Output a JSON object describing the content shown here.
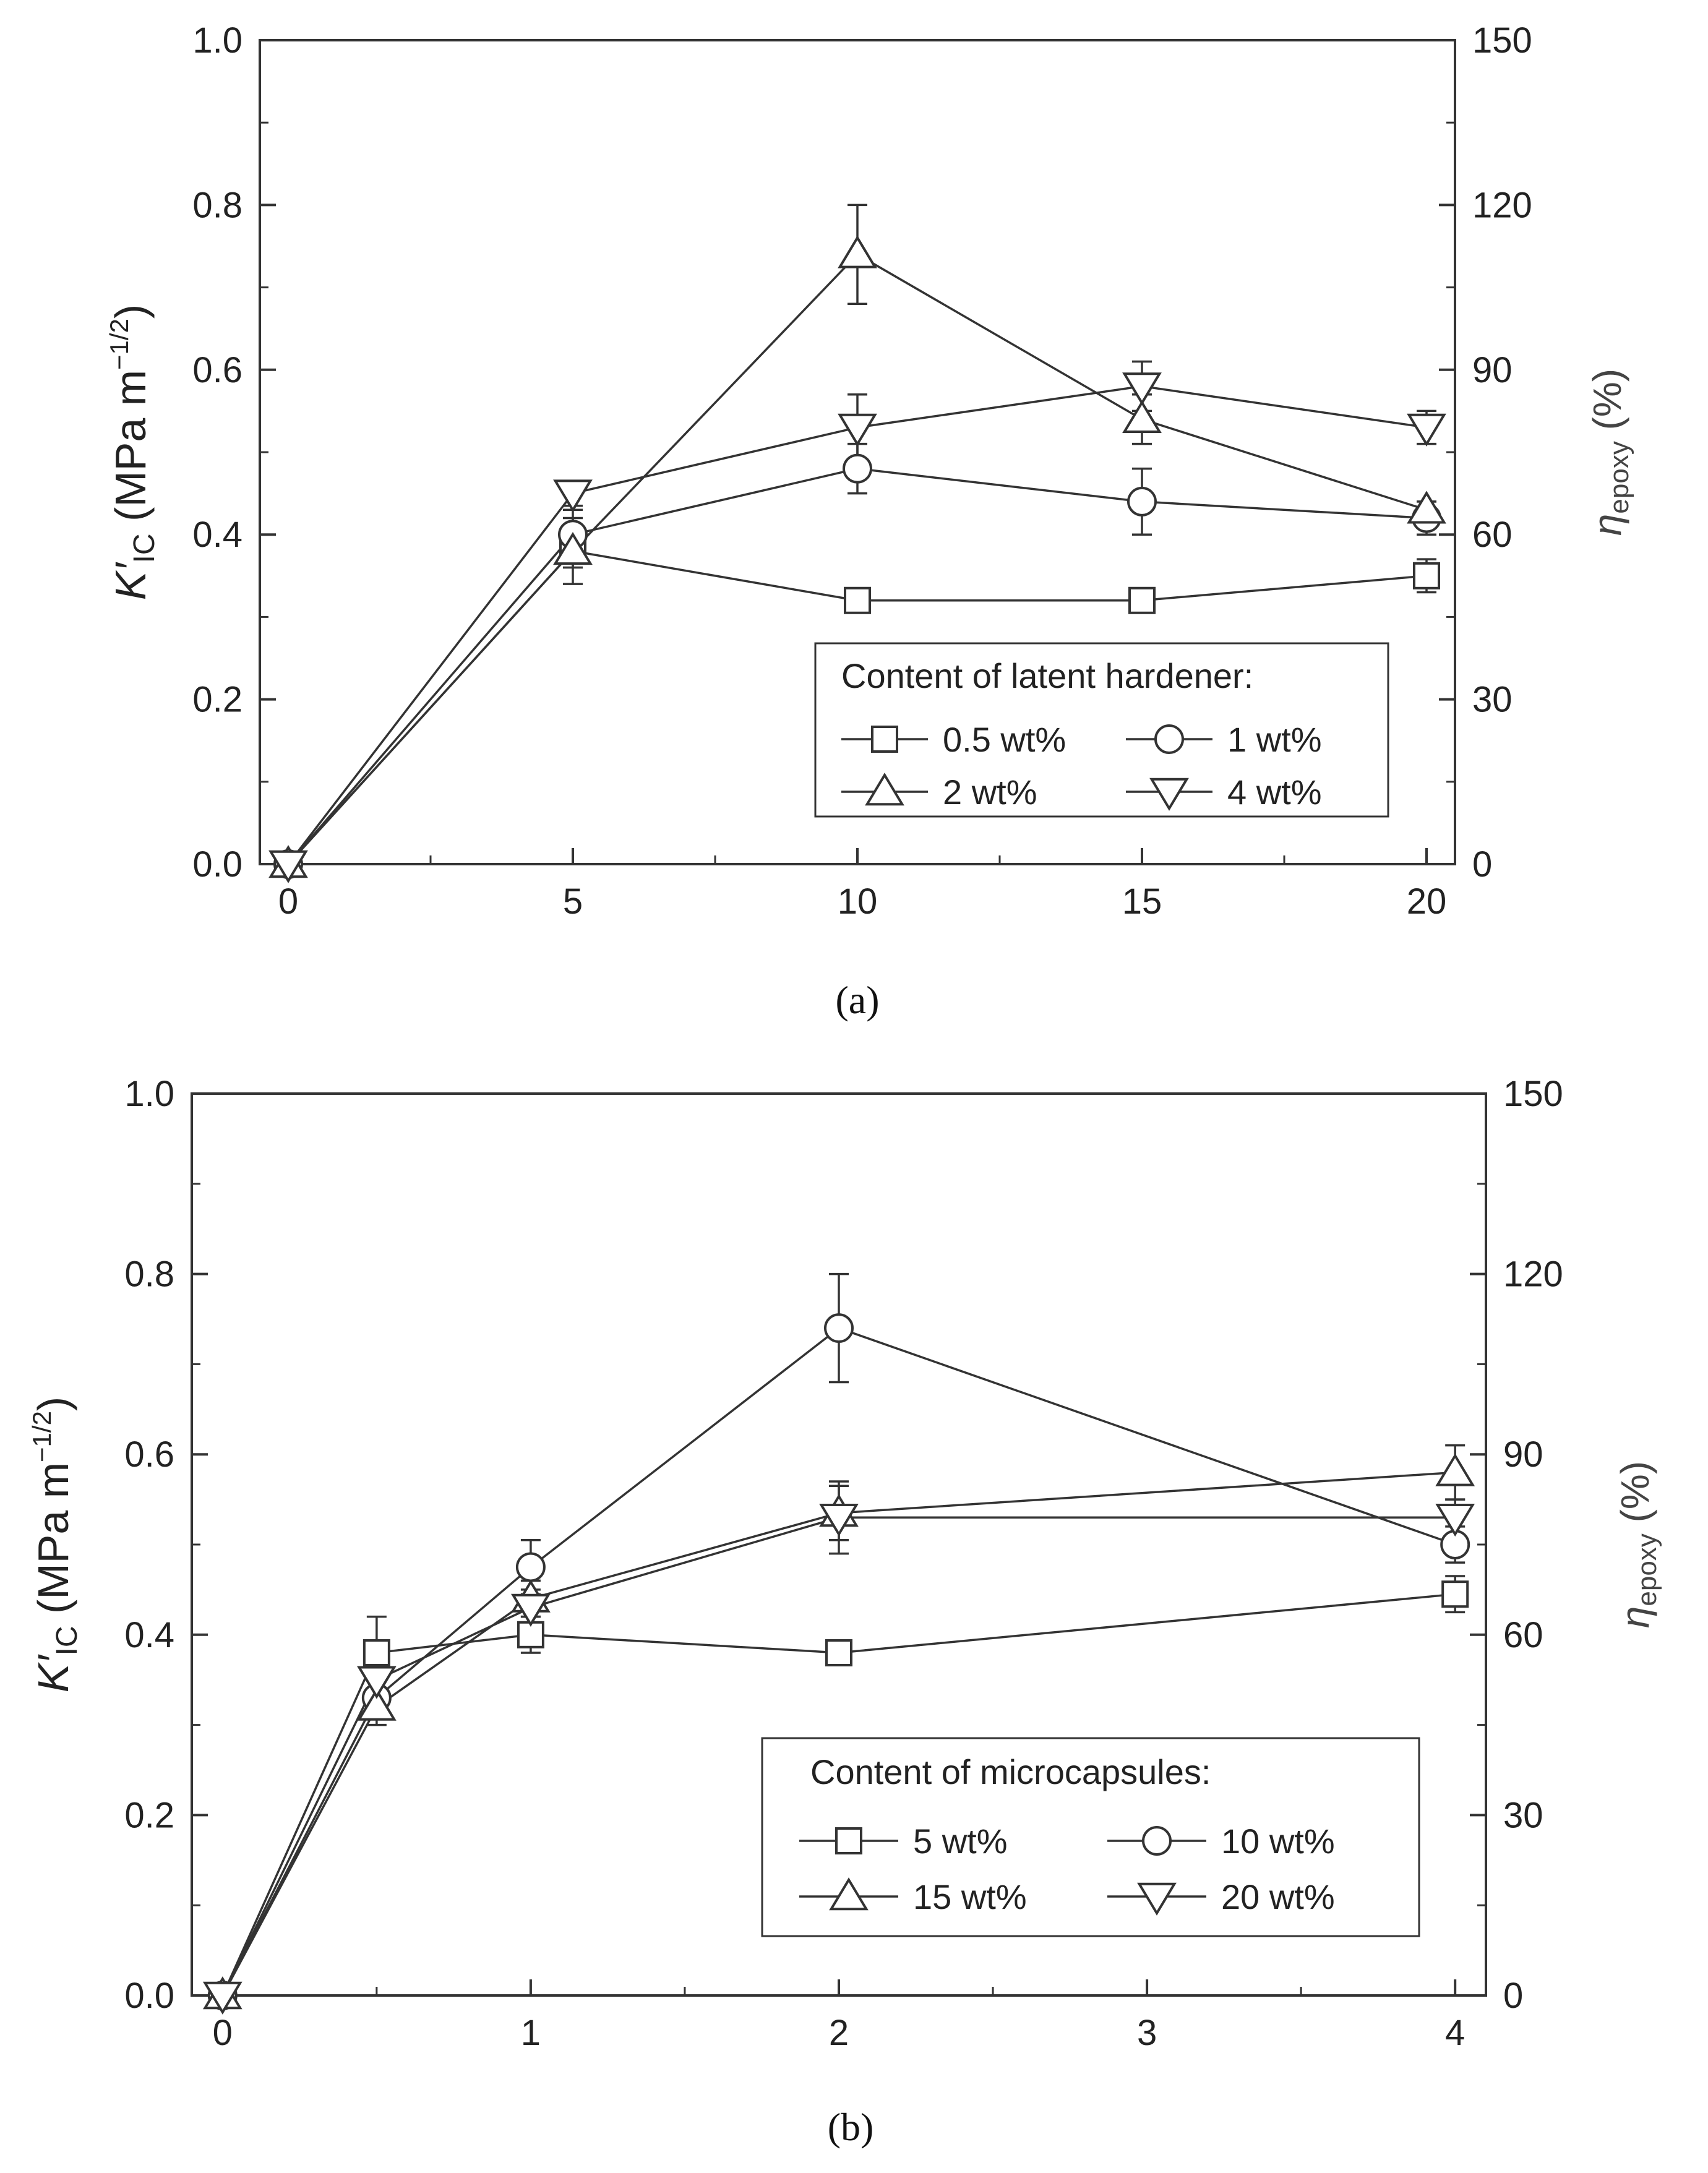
{
  "chart_data": [
    {
      "type": "line",
      "panel_label": "a",
      "legend_title": "Content of latent hardener:",
      "x_ticks": [
        0,
        5,
        10,
        15,
        20
      ],
      "xlim": [
        -0.5,
        20.5
      ],
      "ylim": [
        0.0,
        1.0
      ],
      "y_ticks": [
        "0.0",
        "0.2",
        "0.4",
        "0.6",
        "0.8",
        "1.0"
      ],
      "y2_ticks": [
        "0",
        "30",
        "60",
        "90",
        "120",
        "150"
      ],
      "y2lim": [
        0,
        150
      ],
      "ylabel": {
        "symbol": "K′",
        "sub": "IC",
        "unit_open": " (MPa m",
        "unit_sup": "−1/2",
        "unit_close": ")"
      },
      "y2label": {
        "symbol": "η",
        "sub": "epoxy",
        "unit": " (%)"
      },
      "series": [
        {
          "name": "0.5 wt%",
          "label": "0.5 wt%",
          "marker": "square",
          "x": [
            0,
            5,
            10,
            15,
            20
          ],
          "y": [
            0.0,
            0.38,
            0.32,
            0.32,
            0.35
          ],
          "err": [
            0,
            0.02,
            0.012,
            0.015,
            0.02
          ]
        },
        {
          "name": "1 wt%",
          "label": "1 wt%",
          "marker": "circle",
          "x": [
            0,
            5,
            10,
            15,
            20
          ],
          "y": [
            0.0,
            0.4,
            0.48,
            0.44,
            0.42
          ],
          "err": [
            0,
            0.03,
            0.03,
            0.04,
            0.02
          ]
        },
        {
          "name": "2 wt%",
          "label": "2 wt%",
          "marker": "triangle-up",
          "x": [
            0,
            5,
            10,
            15,
            20
          ],
          "y": [
            0.0,
            0.38,
            0.74,
            0.54,
            0.43
          ],
          "err": [
            0,
            0.04,
            0.06,
            0.03,
            0.01
          ]
        },
        {
          "name": "4 wt%",
          "label": "4 wt%",
          "marker": "triangle-down",
          "x": [
            0,
            5,
            10,
            15,
            20
          ],
          "y": [
            0.0,
            0.45,
            0.53,
            0.58,
            0.53
          ],
          "err": [
            0,
            0.015,
            0.04,
            0.03,
            0.02
          ]
        }
      ]
    },
    {
      "type": "line",
      "panel_label": "b",
      "legend_title": "Content of microcapsules:",
      "x_ticks": [
        0,
        1,
        2,
        3,
        4
      ],
      "xlim": [
        -0.1,
        4.1
      ],
      "ylim": [
        0.0,
        1.0
      ],
      "y_ticks": [
        "0.0",
        "0.2",
        "0.4",
        "0.6",
        "0.8",
        "1.0"
      ],
      "y2_ticks": [
        "0",
        "30",
        "60",
        "90",
        "120",
        "150"
      ],
      "y2lim": [
        0,
        150
      ],
      "ylabel": {
        "symbol": "K′",
        "sub": "IC",
        "unit_open": " (MPa m",
        "unit_sup": "−1/2",
        "unit_close": ")"
      },
      "y2label": {
        "symbol": "η",
        "sub": "epoxy",
        "unit": " (%)"
      },
      "series": [
        {
          "name": "5 wt%",
          "label": "5 wt%",
          "marker": "square",
          "x": [
            0,
            0.5,
            1,
            2,
            4
          ],
          "y": [
            0.0,
            0.38,
            0.4,
            0.38,
            0.445
          ],
          "err": [
            0,
            0.04,
            0.02,
            0.01,
            0.02
          ]
        },
        {
          "name": "10 wt%",
          "label": "10 wt%",
          "marker": "circle",
          "x": [
            0,
            0.5,
            1,
            2,
            4
          ],
          "y": [
            0.0,
            0.33,
            0.475,
            0.74,
            0.5
          ],
          "err": [
            0,
            0.02,
            0.03,
            0.06,
            0.02
          ]
        },
        {
          "name": "15 wt%",
          "label": "15 wt%",
          "marker": "triangle-up",
          "x": [
            0,
            0.5,
            1,
            2,
            4
          ],
          "y": [
            0.0,
            0.32,
            0.44,
            0.535,
            0.58
          ],
          "err": [
            0,
            0.02,
            0.02,
            0.03,
            0.03
          ]
        },
        {
          "name": "20 wt%",
          "label": "20 wt%",
          "marker": "triangle-down",
          "x": [
            0,
            0.5,
            1,
            2,
            4
          ],
          "y": [
            0.0,
            0.35,
            0.43,
            0.53,
            0.53
          ],
          "err": [
            0,
            0.02,
            0.02,
            0.04,
            0.02
          ]
        }
      ]
    }
  ],
  "captions": {
    "a": "(a)",
    "b": "(b)"
  }
}
